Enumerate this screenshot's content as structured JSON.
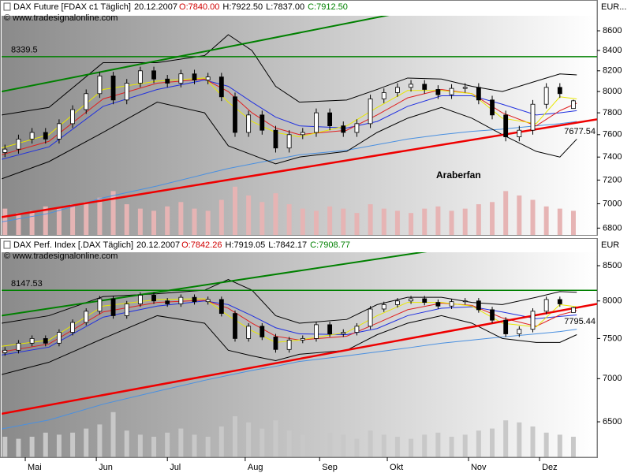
{
  "chart_data": [
    {
      "type": "candlestick",
      "title": "DAX Future [FDAX c1  Täglich]",
      "date": "20.12.2007",
      "quotes": [
        {
          "text": "O:7840.00",
          "color": "#d00000"
        },
        {
          "text": "H:7922.50",
          "color": "#000000"
        },
        {
          "text": "L:7837.00",
          "color": "#000000"
        },
        {
          "text": "C:7912.50",
          "color": "#008000"
        }
      ],
      "source": "© www.tradesignalonline.com",
      "y_axis_label": "EUR...",
      "annotation": "Araberfan",
      "log_scale": true,
      "xlim": [
        0,
        176
      ],
      "ylim": [
        6745,
        8755
      ],
      "yticks": [
        6800,
        7000,
        7200,
        7400,
        7600,
        7800,
        8000,
        8200,
        8400,
        8600
      ],
      "x": [
        1,
        5,
        9,
        13,
        17,
        21,
        25,
        29,
        33,
        37,
        41,
        45,
        49,
        53,
        57,
        61,
        65,
        69,
        73,
        77,
        81,
        85,
        89,
        93,
        97,
        101,
        105,
        109,
        113,
        117,
        121,
        125,
        129,
        133,
        137,
        141,
        145,
        149,
        153,
        157,
        161,
        165,
        169
      ],
      "open": [
        7440,
        7470,
        7560,
        7620,
        7560,
        7700,
        7830,
        7980,
        8150,
        7920,
        8080,
        8200,
        8120,
        8080,
        8170,
        8110,
        8140,
        7950,
        7620,
        7780,
        7640,
        7480,
        7600,
        7620,
        7800,
        7680,
        7620,
        7700,
        7930,
        7990,
        8040,
        8070,
        8020,
        7970,
        8030,
        8040,
        7920,
        7780,
        7580,
        7640,
        7880,
        8040,
        7840
      ],
      "high": [
        7510,
        7600,
        7660,
        7660,
        7740,
        7870,
        8020,
        8190,
        8190,
        8120,
        8240,
        8240,
        8160,
        8210,
        8210,
        8180,
        8180,
        7990,
        7820,
        7820,
        7680,
        7640,
        7660,
        7840,
        7840,
        7720,
        7740,
        7970,
        8030,
        8080,
        8110,
        8110,
        8060,
        8070,
        8080,
        8080,
        7960,
        7820,
        7680,
        7920,
        8080,
        8080,
        7922.5
      ],
      "low": [
        7400,
        7430,
        7520,
        7520,
        7520,
        7660,
        7790,
        7940,
        7880,
        7880,
        8040,
        8080,
        8040,
        8040,
        8070,
        8070,
        7910,
        7580,
        7580,
        7600,
        7440,
        7440,
        7560,
        7580,
        7640,
        7580,
        7580,
        7660,
        7890,
        7950,
        8000,
        7980,
        7930,
        7930,
        7990,
        7880,
        7740,
        7540,
        7540,
        7600,
        7840,
        7940,
        7837
      ],
      "close": [
        7470,
        7560,
        7620,
        7560,
        7700,
        7830,
        7980,
        8150,
        7920,
        8080,
        8200,
        8120,
        8080,
        8170,
        8110,
        8140,
        7950,
        7620,
        7780,
        7640,
        7480,
        7600,
        7620,
        7800,
        7680,
        7620,
        7700,
        7930,
        7990,
        8040,
        8070,
        8020,
        7970,
        8030,
        8040,
        7920,
        7780,
        7580,
        7640,
        7880,
        8040,
        7980,
        7912.5
      ],
      "volume": [
        12,
        10,
        11,
        13,
        12,
        14,
        15,
        17,
        20,
        14,
        12,
        11,
        13,
        15,
        12,
        11,
        16,
        22,
        18,
        15,
        19,
        14,
        12,
        11,
        13,
        12,
        10,
        14,
        12,
        11,
        10,
        12,
        13,
        11,
        12,
        14,
        15,
        20,
        18,
        16,
        13,
        12,
        11
      ],
      "volume_lim": [
        0,
        100
      ],
      "volume_color": "#e6b4b4",
      "lines": [
        {
          "color": "#4a90e0",
          "width": 1,
          "x": [
            0,
            14,
            30,
            46,
            60,
            67,
            74,
            81,
            88,
            102,
            111,
            120,
            130,
            139,
            148,
            158,
            165,
            170
          ],
          "values": [
            6850,
            6920,
            7050,
            7150,
            7250,
            7300,
            7340,
            7380,
            7420,
            7460,
            7510,
            7560,
            7600,
            7630,
            7650,
            7680,
            7700,
            7720
          ]
        },
        {
          "color": "#000000",
          "width": 1,
          "x": [
            0,
            14,
            30,
            46,
            60,
            67,
            74,
            81,
            88,
            102,
            111,
            120,
            130,
            139,
            148,
            158,
            165,
            170
          ],
          "values": [
            7780,
            7850,
            8280,
            8280,
            8350,
            8560,
            8400,
            8050,
            7900,
            7920,
            8020,
            8130,
            8120,
            8050,
            8000,
            8100,
            8170,
            8160
          ]
        },
        {
          "color": "#000000",
          "width": 1,
          "x": [
            0,
            14,
            30,
            46,
            60,
            67,
            74,
            81,
            88,
            102,
            111,
            120,
            130,
            139,
            148,
            158,
            165,
            170
          ],
          "values": [
            7210,
            7360,
            7620,
            7900,
            7800,
            7500,
            7420,
            7340,
            7400,
            7450,
            7620,
            7750,
            7850,
            7750,
            7600,
            7450,
            7400,
            7560
          ]
        },
        {
          "color": "#2030e0",
          "width": 1,
          "x": [
            0,
            14,
            30,
            46,
            60,
            67,
            74,
            81,
            88,
            102,
            111,
            120,
            130,
            139,
            148,
            158,
            165,
            170
          ],
          "values": [
            7380,
            7490,
            7860,
            8020,
            8110,
            8050,
            7900,
            7760,
            7680,
            7660,
            7720,
            7860,
            7960,
            7960,
            7880,
            7780,
            7800,
            7820
          ]
        },
        {
          "color": "#e02020",
          "width": 1,
          "x": [
            0,
            14,
            30,
            46,
            60,
            67,
            74,
            81,
            88,
            102,
            111,
            120,
            130,
            139,
            148,
            158,
            165,
            170
          ],
          "values": [
            7420,
            7540,
            7930,
            8080,
            8120,
            8000,
            7800,
            7660,
            7600,
            7640,
            7780,
            7940,
            8020,
            7980,
            7800,
            7680,
            7820,
            7890
          ]
        },
        {
          "color": "#e8e800",
          "width": 1,
          "x": [
            0,
            14,
            30,
            46,
            60,
            67,
            74,
            81,
            88,
            102,
            111,
            120,
            130,
            139,
            148,
            158,
            165,
            170
          ],
          "values": [
            7480,
            7600,
            8020,
            8100,
            8130,
            7900,
            7720,
            7620,
            7580,
            7680,
            7850,
            8010,
            8010,
            7980,
            7750,
            7700,
            7950,
            7930
          ]
        },
        {
          "color": "#008000",
          "width": 2,
          "x": [
            0,
            127
          ],
          "values": [
            8000,
            8850
          ]
        },
        {
          "color": "#ee0000",
          "width": 2.5,
          "x": [
            0,
            176
          ],
          "values": [
            6890,
            7740
          ]
        }
      ],
      "levels": [
        {
          "value": 8339.5,
          "color": "#008000"
        }
      ],
      "price_label": {
        "value": 7677.54,
        "color": "#d00000"
      }
    },
    {
      "type": "candlestick",
      "title": "DAX Perf. Index [.DAX  Täglich]",
      "date": "20.12.2007",
      "quotes": [
        {
          "text": "O:7842.26",
          "color": "#d00000"
        },
        {
          "text": "H:7919.05",
          "color": "#000000"
        },
        {
          "text": "L:7842.17",
          "color": "#000000"
        },
        {
          "text": "C:7908.77",
          "color": "#008000"
        }
      ],
      "source": "© www.tradesignalonline.com",
      "y_axis_label": "EUR",
      "log_scale": true,
      "xlim": [
        0,
        176
      ],
      "ylim": [
        6116,
        8698
      ],
      "yticks": [
        6500,
        7000,
        7500,
        8000,
        8500
      ],
      "xticks": [
        {
          "value": 7,
          "label": "Mai"
        },
        {
          "value": 28,
          "label": "Jun"
        },
        {
          "value": 49,
          "label": "Jul"
        },
        {
          "value": 72,
          "label": "Aug"
        },
        {
          "value": 94,
          "label": "Sep"
        },
        {
          "value": 114,
          "label": "Okt"
        },
        {
          "value": 138,
          "label": "Nov"
        },
        {
          "value": 159,
          "label": "Dez"
        }
      ],
      "x": [
        1,
        5,
        9,
        13,
        17,
        21,
        25,
        29,
        33,
        37,
        41,
        45,
        49,
        53,
        57,
        61,
        65,
        69,
        73,
        77,
        81,
        85,
        89,
        93,
        97,
        101,
        105,
        109,
        113,
        117,
        121,
        125,
        129,
        133,
        137,
        141,
        145,
        149,
        153,
        157,
        161,
        165,
        169
      ],
      "open": [
        7320,
        7350,
        7440,
        7500,
        7440,
        7580,
        7710,
        7860,
        8030,
        7800,
        7960,
        8080,
        8000,
        7960,
        8050,
        7990,
        8020,
        7830,
        7500,
        7660,
        7520,
        7360,
        7480,
        7500,
        7680,
        7560,
        7580,
        7660,
        7890,
        7950,
        8000,
        8030,
        7980,
        7930,
        7990,
        8000,
        7880,
        7740,
        7560,
        7620,
        7860,
        8020,
        7842.26
      ],
      "high": [
        7390,
        7480,
        7540,
        7540,
        7620,
        7750,
        7900,
        8070,
        8070,
        8000,
        8120,
        8120,
        8040,
        8090,
        8090,
        8060,
        8060,
        7870,
        7700,
        7700,
        7560,
        7520,
        7540,
        7720,
        7720,
        7620,
        7700,
        7930,
        7990,
        8040,
        8070,
        8070,
        8020,
        8030,
        8040,
        8040,
        7920,
        7780,
        7660,
        7900,
        8060,
        8060,
        7919.05
      ],
      "low": [
        7280,
        7310,
        7400,
        7400,
        7400,
        7540,
        7670,
        7820,
        7760,
        7760,
        7920,
        7960,
        7920,
        7920,
        7950,
        7950,
        7790,
        7460,
        7460,
        7480,
        7320,
        7320,
        7440,
        7460,
        7520,
        7520,
        7540,
        7620,
        7850,
        7910,
        7960,
        7940,
        7890,
        7890,
        7950,
        7840,
        7700,
        7520,
        7520,
        7580,
        7820,
        7920,
        7842.17
      ],
      "close": [
        7350,
        7440,
        7500,
        7440,
        7580,
        7710,
        7860,
        8030,
        7800,
        7960,
        8080,
        8000,
        7960,
        8050,
        7990,
        8020,
        7830,
        7500,
        7660,
        7520,
        7360,
        7480,
        7500,
        7680,
        7560,
        7580,
        7660,
        7890,
        7950,
        8000,
        8030,
        7980,
        7930,
        7990,
        8000,
        7880,
        7740,
        7560,
        7620,
        7860,
        8020,
        7960,
        7908.77
      ],
      "volume": [
        10,
        9,
        10,
        12,
        11,
        12,
        14,
        16,
        22,
        13,
        11,
        10,
        12,
        14,
        11,
        10,
        15,
        20,
        17,
        14,
        18,
        13,
        11,
        10,
        12,
        11,
        9,
        13,
        11,
        10,
        9,
        11,
        12,
        10,
        11,
        13,
        14,
        18,
        17,
        15,
        12,
        11,
        10
      ],
      "volume_lim": [
        0,
        100
      ],
      "volume_color": "#c8c8c8",
      "lines": [
        {
          "color": "#4a90e0",
          "width": 1,
          "x": [
            0,
            14,
            30,
            46,
            60,
            67,
            74,
            81,
            88,
            102,
            111,
            120,
            130,
            139,
            148,
            158,
            165,
            170
          ],
          "values": [
            6420,
            6520,
            6700,
            6850,
            6980,
            7040,
            7100,
            7150,
            7210,
            7280,
            7330,
            7380,
            7440,
            7480,
            7520,
            7560,
            7590,
            7620
          ]
        },
        {
          "color": "#000000",
          "width": 1,
          "x": [
            0,
            14,
            30,
            46,
            60,
            67,
            74,
            81,
            88,
            102,
            111,
            120,
            130,
            139,
            148,
            158,
            165,
            170
          ],
          "values": [
            7700,
            7800,
            8060,
            8100,
            8150,
            8300,
            8150,
            7800,
            7700,
            7750,
            7950,
            8050,
            8050,
            7980,
            7950,
            8050,
            8130,
            8120
          ]
        },
        {
          "color": "#000000",
          "width": 1,
          "x": [
            0,
            14,
            30,
            46,
            60,
            67,
            74,
            81,
            88,
            102,
            111,
            120,
            130,
            139,
            148,
            158,
            165,
            170
          ],
          "values": [
            7050,
            7200,
            7500,
            7800,
            7700,
            7350,
            7280,
            7220,
            7300,
            7350,
            7550,
            7700,
            7800,
            7700,
            7500,
            7450,
            7450,
            7550
          ]
        },
        {
          "color": "#2030e0",
          "width": 1,
          "x": [
            0,
            14,
            30,
            46,
            60,
            67,
            74,
            81,
            88,
            102,
            111,
            120,
            130,
            139,
            148,
            158,
            165,
            170
          ],
          "values": [
            7290,
            7390,
            7780,
            7930,
            8000,
            7950,
            7800,
            7640,
            7560,
            7550,
            7630,
            7800,
            7900,
            7920,
            7850,
            7760,
            7790,
            7810
          ]
        },
        {
          "color": "#e02020",
          "width": 1,
          "x": [
            0,
            14,
            30,
            46,
            60,
            67,
            74,
            81,
            88,
            102,
            111,
            120,
            130,
            139,
            148,
            158,
            165,
            170
          ],
          "values": [
            7330,
            7430,
            7850,
            7980,
            8010,
            7900,
            7700,
            7530,
            7480,
            7530,
            7700,
            7880,
            7970,
            7940,
            7770,
            7660,
            7810,
            7870
          ]
        },
        {
          "color": "#e8e800",
          "width": 1,
          "x": [
            0,
            14,
            30,
            46,
            60,
            67,
            74,
            81,
            88,
            102,
            111,
            120,
            130,
            139,
            148,
            158,
            165,
            170
          ],
          "values": [
            7400,
            7480,
            7930,
            8020,
            8030,
            7800,
            7600,
            7450,
            7480,
            7580,
            7800,
            7980,
            7980,
            7930,
            7700,
            7650,
            7950,
            7920
          ]
        },
        {
          "color": "#008000",
          "width": 2,
          "x": [
            0,
            131
          ],
          "values": [
            7800,
            8750
          ]
        },
        {
          "color": "#ee0000",
          "width": 2.5,
          "x": [
            0,
            176
          ],
          "values": [
            6590,
            7960
          ]
        }
      ],
      "levels": [
        {
          "value": 8147.53,
          "color": "#008000"
        }
      ],
      "price_label": {
        "value": 7795.44,
        "color": "#d00000"
      }
    }
  ]
}
